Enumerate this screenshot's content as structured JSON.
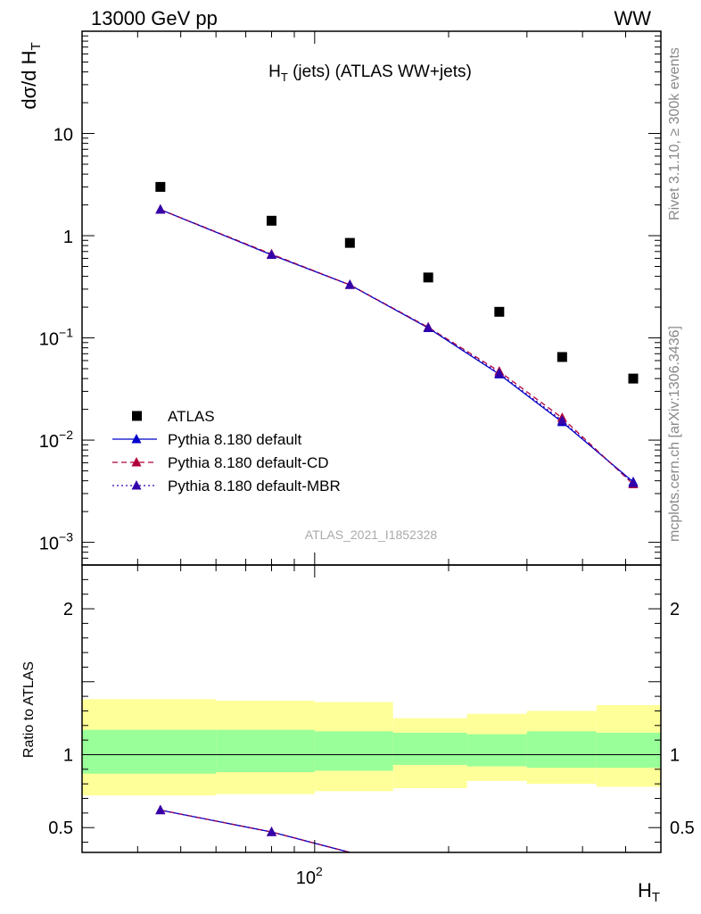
{
  "header": {
    "left": "13000 GeV pp",
    "right": "WW"
  },
  "side": {
    "top": "Rivet 3.1.10, ≥ 300k events",
    "bottom": "mcplots.cern.ch [arXiv:1306.3436]"
  },
  "chart_data": [
    {
      "type": "scatter",
      "title_main": "H",
      "title_sub": "T",
      "title_rest": " (jets) (ATLAS WW+jets)",
      "watermark": "ATLAS_2021_I1852328",
      "ylabel_a": "dσ/d H",
      "ylabel_sub": "T",
      "yscale": "log",
      "ylim": [
        0.0006,
        100
      ],
      "xscale": "log",
      "xlim": [
        30,
        600
      ],
      "y_ticks": [
        {
          "value": 10,
          "label": "10",
          "mant": "",
          "exp": ""
        },
        {
          "value": 1,
          "label": "1",
          "mant": "",
          "exp": ""
        },
        {
          "value": 0.1,
          "label": "",
          "mant": "10",
          "exp": "−1"
        },
        {
          "value": 0.01,
          "label": "",
          "mant": "10",
          "exp": "−2"
        },
        {
          "value": 0.001,
          "label": "",
          "mant": "10",
          "exp": "−3"
        }
      ],
      "legend_position": "bottom-left",
      "series": [
        {
          "name": "ATLAS",
          "style": "data",
          "color": "#000000",
          "x": [
            45,
            80,
            120,
            180,
            260,
            360,
            520
          ],
          "y": [
            3.0,
            1.4,
            0.85,
            0.39,
            0.18,
            0.065,
            0.04
          ]
        },
        {
          "name": "Pythia 8.180 default",
          "style": "solid",
          "color": "#0000cc",
          "x": [
            45,
            80,
            120,
            180,
            260,
            360,
            520
          ],
          "y": [
            1.8,
            0.65,
            0.33,
            0.125,
            0.044,
            0.015,
            0.0039
          ]
        },
        {
          "name": "Pythia 8.180 default-CD",
          "style": "dashed",
          "color": "#b0003a",
          "x": [
            45,
            80,
            120,
            180,
            260,
            360,
            520
          ],
          "y": [
            1.8,
            0.66,
            0.33,
            0.127,
            0.047,
            0.0165,
            0.0037
          ]
        },
        {
          "name": "Pythia 8.180 default-MBR",
          "style": "dotted",
          "color": "#3300aa",
          "x": [
            45,
            80,
            120,
            180,
            260,
            360,
            520
          ],
          "y": [
            1.8,
            0.65,
            0.33,
            0.126,
            0.045,
            0.0155,
            0.0038
          ]
        }
      ]
    },
    {
      "type": "line",
      "ylabel": "Ratio to ATLAS",
      "xlabel_main": "H",
      "xlabel_sub": "T",
      "yscale": "linear",
      "ylim": [
        0.33,
        2.3
      ],
      "xlim": [
        30,
        600
      ],
      "y_ticks": [
        {
          "value": 2,
          "label": "2"
        },
        {
          "value": 1,
          "label": "1"
        },
        {
          "value": 0.5,
          "label": "0.5"
        }
      ],
      "x_ticks": [
        {
          "value": 100,
          "mant": "10",
          "exp": "2"
        }
      ],
      "bins": [
        30,
        60,
        100,
        150,
        220,
        300,
        430,
        600
      ],
      "band_inner": [
        [
          0.87,
          1.17
        ],
        [
          0.88,
          1.17
        ],
        [
          0.89,
          1.16
        ],
        [
          0.93,
          1.15
        ],
        [
          0.92,
          1.14
        ],
        [
          0.91,
          1.16
        ],
        [
          0.91,
          1.15
        ]
      ],
      "band_outer": [
        [
          0.72,
          1.38
        ],
        [
          0.73,
          1.37
        ],
        [
          0.75,
          1.36
        ],
        [
          0.77,
          1.25
        ],
        [
          0.82,
          1.28
        ],
        [
          0.8,
          1.3
        ],
        [
          0.78,
          1.34
        ]
      ],
      "series": [
        {
          "name": "Pythia 8.180 default",
          "style": "solid",
          "color": "#0000cc",
          "x": [
            45,
            80,
            120
          ],
          "y": [
            0.62,
            0.47,
            0.33
          ]
        },
        {
          "name": "Pythia 8.180 default-CD",
          "style": "dashed",
          "color": "#b0003a",
          "x": [
            45,
            80,
            120
          ],
          "y": [
            0.62,
            0.47,
            0.33
          ]
        },
        {
          "name": "Pythia 8.180 default-MBR",
          "style": "dotted",
          "color": "#3300aa",
          "x": [
            45,
            80,
            120
          ],
          "y": [
            0.62,
            0.47,
            0.33
          ]
        }
      ],
      "band_colors": {
        "inner": "#99ff99",
        "outer": "#ffff99"
      }
    }
  ]
}
